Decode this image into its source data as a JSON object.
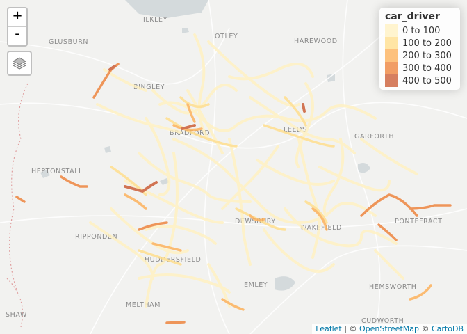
{
  "controls": {
    "zoom_in": "+",
    "zoom_out": "-",
    "layers_icon": "layers-icon"
  },
  "legend": {
    "title": "car_driver",
    "items": [
      {
        "label": "0 to 100",
        "color": "#FFF1C3"
      },
      {
        "label": "100 to 200",
        "color": "#FFDF8E"
      },
      {
        "label": "200 to 300",
        "color": "#FDB25D"
      },
      {
        "label": "300 to 400",
        "color": "#EE853F"
      },
      {
        "label": "400 to 500",
        "color": "#CC5F38"
      }
    ]
  },
  "attribution": {
    "leaflet": "Leaflet",
    "sep1": " | © ",
    "osm": "OpenStreetMap",
    "sep2": " © ",
    "carto": "CartoDB"
  },
  "places": [
    "ILKLEY",
    "OTLEY",
    "GLUSBURN",
    "HAREWOOD",
    "BINGLEY",
    "BRADFORD",
    "LEEDS",
    "GARFORTH",
    "HEPTONSTALL",
    "RIPPONDEN",
    "DEWSBURY",
    "WAKEFIELD",
    "PONTEFRACT",
    "HUDDERSFIELD",
    "EMLEY",
    "HEMSWORTH",
    "MELTHAM",
    "SHAW",
    "CUDWORTH"
  ]
}
